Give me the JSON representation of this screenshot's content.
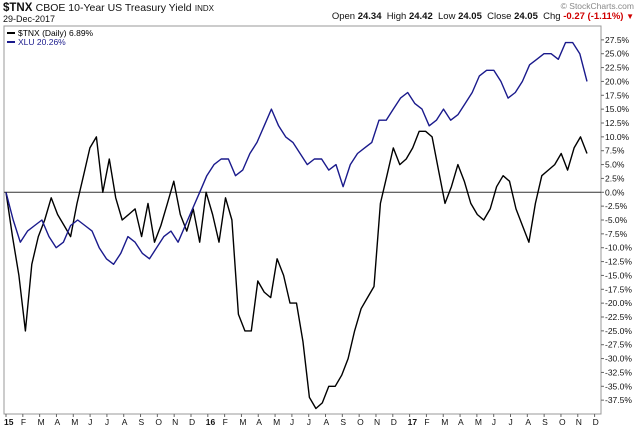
{
  "header": {
    "symbol": "$TNX",
    "description": "CBOE 10-Year US Treasury Yield",
    "exchange": "INDX",
    "date": "29-Dec-2017",
    "credit": "© StockCharts.com",
    "open_label": "Open",
    "open": "24.34",
    "high_label": "High",
    "high": "24.42",
    "low_label": "Low",
    "low": "24.05",
    "close_label": "Close",
    "close": "24.05",
    "chg_label": "Chg",
    "chg": "-0.27 (-1.11%)",
    "chg_arrow": "▼"
  },
  "chart_data": {
    "type": "line",
    "ylim": [
      -40,
      30
    ],
    "y_ticks": [
      -37.5,
      -35,
      -32.5,
      -30,
      -27.5,
      -25,
      -22.5,
      -20,
      -17.5,
      -15,
      -12.5,
      -10,
      -7.5,
      -5,
      -2.5,
      0,
      2.5,
      5,
      7.5,
      10,
      12.5,
      15,
      17.5,
      20,
      22.5,
      25,
      27.5
    ],
    "y_tick_labels": [
      "-37.5%",
      "-35.0%",
      "-32.5%",
      "-30.0%",
      "-27.5%",
      "-25.0%",
      "-22.5%",
      "-20.0%",
      "-17.5%",
      "-15.0%",
      "-12.5%",
      "-10.0%",
      "-7.5%",
      "-5.0%",
      "-2.5%",
      "0.0%",
      "2.5%",
      "5.0%",
      "7.5%",
      "10.0%",
      "12.5%",
      "15.0%",
      "17.5%",
      "20.0%",
      "22.5%",
      "25.0%",
      "27.5%"
    ],
    "x_ticks": [
      "15",
      "F",
      "M",
      "A",
      "M",
      "J",
      "J",
      "A",
      "S",
      "O",
      "N",
      "D",
      "16",
      "F",
      "M",
      "A",
      "M",
      "J",
      "J",
      "A",
      "S",
      "O",
      "N",
      "D",
      "17",
      "F",
      "M",
      "A",
      "M",
      "J",
      "J",
      "A",
      "S",
      "O",
      "N",
      "D"
    ],
    "x_bold_ticks": [
      "15",
      "16",
      "17"
    ],
    "zero_line": true,
    "legend_position": "top-left",
    "series": [
      {
        "name": "$TNX (Daily) 6.89%",
        "color": "#000000",
        "values": [
          0,
          -8,
          -15,
          -25,
          -13,
          -8,
          -5,
          -1,
          -4,
          -6,
          -8,
          -2,
          3,
          8,
          10,
          0,
          6,
          -1,
          -5,
          -4,
          -3,
          -8,
          -2,
          -9,
          -6,
          -2,
          2,
          -4,
          -7,
          -3,
          -9,
          0,
          -4,
          -9,
          -1,
          -5,
          -22,
          -25,
          -25,
          -16,
          -18,
          -19,
          -12,
          -15,
          -20,
          -20,
          -27,
          -37,
          -39,
          -38,
          -35,
          -35,
          -33,
          -30,
          -25,
          -21,
          -19,
          -17,
          -2,
          3,
          8,
          5,
          6,
          8,
          11,
          11,
          10,
          4,
          -2,
          1,
          5,
          2,
          -2,
          -4,
          -5,
          -3,
          1,
          3,
          2,
          -3,
          -6,
          -9,
          -2,
          3,
          4,
          5,
          7,
          4,
          8,
          10,
          7
        ]
      },
      {
        "name": "XLU 20.26%",
        "color": "#1a1a8c",
        "values": [
          0,
          -5,
          -9,
          -7,
          -6,
          -5,
          -8,
          -10,
          -9,
          -6,
          -5,
          -6,
          -7,
          -10,
          -12,
          -13,
          -11,
          -8,
          -9,
          -11,
          -12,
          -10,
          -8,
          -7,
          -9,
          -6,
          -3,
          0,
          3,
          5,
          6,
          6,
          3,
          4,
          7,
          9,
          12,
          15,
          12,
          10,
          9,
          7,
          5,
          6,
          6,
          4,
          5,
          1,
          5,
          7,
          8,
          9,
          13,
          13,
          15,
          17,
          18,
          16,
          15,
          12,
          13,
          15,
          13,
          14,
          16,
          18,
          21,
          22,
          22,
          20,
          17,
          18,
          20,
          23,
          24,
          25,
          25,
          24,
          27,
          27,
          25,
          20
        ]
      }
    ]
  }
}
